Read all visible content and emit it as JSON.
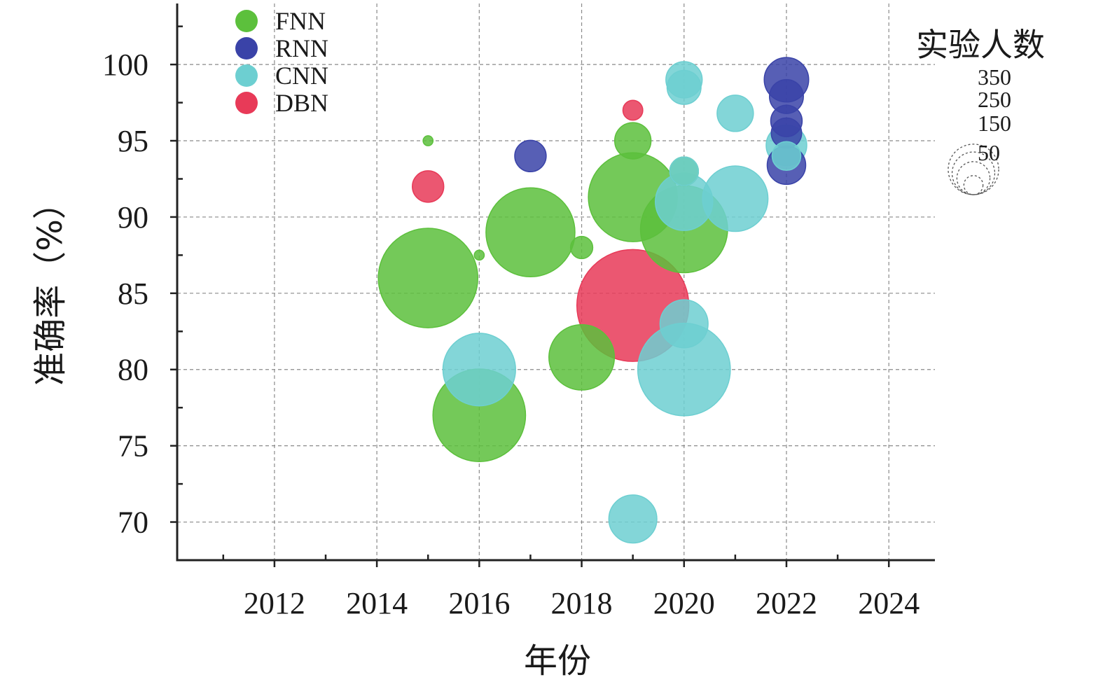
{
  "chart_data": {
    "type": "scatter",
    "variant": "bubble",
    "xlabel": "年份",
    "ylabel": "准确率（%）",
    "xlim": [
      2010.1,
      2024.9
    ],
    "ylim": [
      67.5,
      104
    ],
    "x_ticks": [
      2012,
      2014,
      2016,
      2018,
      2020,
      2022,
      2024
    ],
    "y_ticks": [
      70,
      75,
      80,
      85,
      90,
      95,
      100
    ],
    "grid": true,
    "legend_position": "top-left",
    "size_legend": {
      "title": "实验人数",
      "values": [
        350,
        250,
        150,
        50
      ],
      "position": "top-right"
    },
    "series": [
      {
        "name": "FNN",
        "color": "#5cc03c",
        "points": [
          {
            "x": 2015,
            "y": 95,
            "size": 3
          },
          {
            "x": 2015,
            "y": 86,
            "size": 300
          },
          {
            "x": 2016,
            "y": 87.5,
            "size": 3
          },
          {
            "x": 2016,
            "y": 77,
            "size": 260
          },
          {
            "x": 2017,
            "y": 89,
            "size": 240
          },
          {
            "x": 2018,
            "y": 88,
            "size": 15
          },
          {
            "x": 2018,
            "y": 80.8,
            "size": 130
          },
          {
            "x": 2019,
            "y": 95,
            "size": 40
          },
          {
            "x": 2019,
            "y": 91.3,
            "size": 240
          },
          {
            "x": 2020,
            "y": 89.2,
            "size": 230
          },
          {
            "x": 2020,
            "y": 93,
            "size": 25
          }
        ]
      },
      {
        "name": "RNN",
        "color": "#3a43a8",
        "points": [
          {
            "x": 2017,
            "y": 94,
            "size": 30
          },
          {
            "x": 2022,
            "y": 99,
            "size": 60
          },
          {
            "x": 2022,
            "y": 97.9,
            "size": 35
          },
          {
            "x": 2022,
            "y": 96.3,
            "size": 30
          },
          {
            "x": 2022,
            "y": 95.5,
            "size": 28
          },
          {
            "x": 2022,
            "y": 93.4,
            "size": 45
          }
        ]
      },
      {
        "name": "CNN",
        "color": "#6dcfd1",
        "points": [
          {
            "x": 2016,
            "y": 80,
            "size": 160
          },
          {
            "x": 2019,
            "y": 70.2,
            "size": 70
          },
          {
            "x": 2020,
            "y": 99,
            "size": 40
          },
          {
            "x": 2020,
            "y": 98.5,
            "size": 35
          },
          {
            "x": 2020,
            "y": 93,
            "size": 25
          },
          {
            "x": 2020,
            "y": 91,
            "size": 100
          },
          {
            "x": 2020,
            "y": 83,
            "size": 70
          },
          {
            "x": 2020,
            "y": 80,
            "size": 260
          },
          {
            "x": 2021,
            "y": 96.8,
            "size": 40
          },
          {
            "x": 2021,
            "y": 91.2,
            "size": 130
          },
          {
            "x": 2022,
            "y": 94.7,
            "size": 50
          },
          {
            "x": 2022,
            "y": 94,
            "size": 25
          }
        ]
      },
      {
        "name": "DBN",
        "color": "#e83a58",
        "points": [
          {
            "x": 2015,
            "y": 92,
            "size": 30
          },
          {
            "x": 2019,
            "y": 97,
            "size": 12
          },
          {
            "x": 2019,
            "y": 84.2,
            "size": 380
          }
        ]
      }
    ]
  }
}
